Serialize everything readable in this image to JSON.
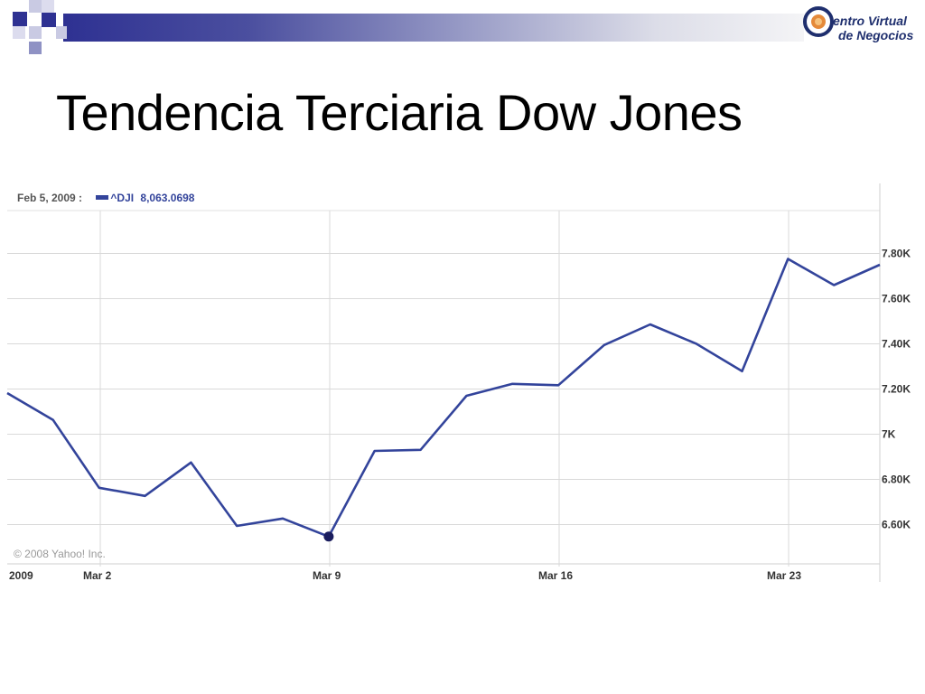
{
  "slide": {
    "title": "Tendencia Terciaria Dow Jones"
  },
  "logo": {
    "line1": "entro Virtual",
    "initial": "C",
    "line2": "de  Negocios"
  },
  "colors": {
    "series": "#33449b",
    "grid": "#d9d9d9",
    "band_start": "#2e3192",
    "marker": "#1a1d5e"
  },
  "chart_data": {
    "type": "line",
    "header": {
      "date": "Feb 5, 2009 :",
      "symbol": "^DJI",
      "value": "8,063.0698"
    },
    "watermark": "© 2008 Yahoo! Inc.",
    "x_tick_labels": [
      "2009",
      "Mar 2",
      "Mar 9",
      "Mar 16",
      "Mar 23"
    ],
    "y_tick_labels": [
      "7.80K",
      "7.60K",
      "7.40K",
      "7.20K",
      "7K",
      "6.80K",
      "6.60K"
    ],
    "ylim": [
      6430,
      7990
    ],
    "grid": true,
    "series": [
      {
        "values": [
          7182,
          7063,
          6763,
          6727,
          6875,
          6594,
          6627,
          6547,
          6926,
          6931,
          7170,
          7223,
          7217,
          7395,
          7486,
          7401,
          7279,
          7776,
          7660,
          7750
        ]
      }
    ],
    "highlighted_point_index": 7
  }
}
